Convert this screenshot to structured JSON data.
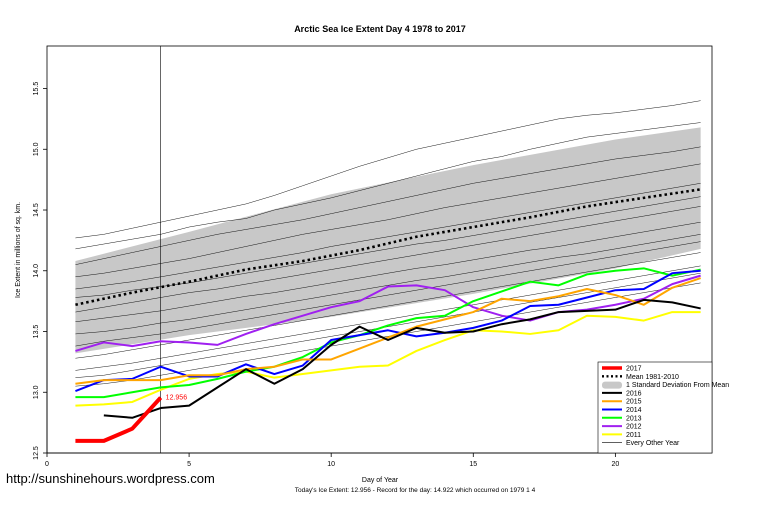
{
  "chart_data": {
    "type": "line",
    "title": "Arctic Sea Ice Extent Day 4 1978 to 2017",
    "xlabel": "Day of Year",
    "ylabel": "Ice Extent in millions of sq. km.",
    "xlim": [
      0,
      23.4
    ],
    "ylim": [
      12.5,
      15.85
    ],
    "xticks": [
      0,
      5,
      10,
      15,
      20
    ],
    "yticks": [
      12.5,
      13.0,
      13.5,
      14.0,
      14.5,
      15.0,
      15.5
    ],
    "ytick_labels": [
      "12.5",
      "13.0",
      "13.5",
      "14.0",
      "14.5",
      "15.0",
      "15.5"
    ],
    "cursor_day": 4,
    "todays_value_label": "12.956",
    "todays_value": 12.956,
    "band": {
      "name": "1 Standard Deviation From Mean",
      "x": [
        1,
        5,
        10,
        15,
        20,
        23
      ],
      "lower": [
        13.32,
        13.47,
        13.62,
        13.81,
        14.02,
        14.18
      ],
      "upper": [
        14.08,
        14.32,
        14.63,
        14.87,
        15.08,
        15.18
      ]
    },
    "mean": {
      "name": "Mean 1981-2010",
      "x": [
        1,
        3,
        5,
        7,
        9,
        11,
        13,
        15,
        17,
        19,
        21,
        23
      ],
      "values": [
        13.72,
        13.82,
        13.91,
        14.01,
        14.08,
        14.17,
        14.28,
        14.36,
        14.44,
        14.53,
        14.6,
        14.67
      ]
    },
    "series": [
      {
        "name": "2017",
        "color": "#ff0000",
        "width": 4,
        "x": [
          1,
          2,
          3,
          4
        ],
        "values": [
          12.6,
          12.6,
          12.7,
          12.956
        ]
      },
      {
        "name": "2016",
        "color": "#000000",
        "width": 2,
        "x": [
          2,
          3,
          4,
          5,
          6,
          7,
          8,
          9,
          10,
          11,
          12,
          13,
          14,
          15,
          16,
          17,
          18,
          19,
          20,
          21,
          22,
          23
        ],
        "values": [
          12.81,
          12.79,
          12.87,
          12.89,
          13.04,
          13.19,
          13.07,
          13.19,
          13.39,
          13.54,
          13.43,
          13.53,
          13.49,
          13.5,
          13.56,
          13.6,
          13.66,
          13.67,
          13.68,
          13.76,
          13.74,
          13.69
        ]
      },
      {
        "name": "2015",
        "color": "#ffa500",
        "width": 2,
        "x": [
          1,
          2,
          3,
          4,
          5,
          6,
          7,
          8,
          9,
          10,
          11,
          12,
          13,
          14,
          15,
          16,
          17,
          18,
          19,
          20,
          21,
          22,
          23
        ],
        "values": [
          13.07,
          13.1,
          13.1,
          13.1,
          13.14,
          13.14,
          13.19,
          13.21,
          13.27,
          13.27,
          13.36,
          13.45,
          13.54,
          13.6,
          13.66,
          13.77,
          13.75,
          13.79,
          13.85,
          13.8,
          13.72,
          13.86,
          13.94
        ]
      },
      {
        "name": "2014",
        "color": "#0000ff",
        "width": 2,
        "x": [
          1,
          2,
          3,
          4,
          5,
          6,
          7,
          8,
          9,
          10,
          11,
          12,
          13,
          14,
          15,
          16,
          17,
          18,
          19,
          20,
          21,
          22,
          23
        ],
        "values": [
          13.01,
          13.1,
          13.11,
          13.21,
          13.13,
          13.13,
          13.23,
          13.15,
          13.22,
          13.43,
          13.47,
          13.51,
          13.46,
          13.49,
          13.53,
          13.59,
          13.71,
          13.72,
          13.78,
          13.84,
          13.85,
          13.98,
          14.0
        ]
      },
      {
        "name": "2013",
        "color": "#00ff00",
        "width": 2,
        "x": [
          1,
          2,
          3,
          4,
          5,
          6,
          7,
          8,
          9,
          10,
          11,
          12,
          13,
          14,
          15,
          16,
          17,
          18,
          19,
          20,
          21,
          22,
          23
        ],
        "values": [
          12.96,
          12.96,
          13.0,
          13.04,
          13.06,
          13.11,
          13.17,
          13.21,
          13.29,
          13.41,
          13.47,
          13.55,
          13.61,
          13.63,
          13.75,
          13.83,
          13.91,
          13.88,
          13.97,
          14.0,
          14.02,
          13.96,
          14.01
        ]
      },
      {
        "name": "2012",
        "color": "#a020f0",
        "width": 2,
        "x": [
          1,
          2,
          3,
          4,
          5,
          6,
          7,
          8,
          9,
          10,
          11,
          12,
          13,
          14,
          15,
          16,
          17,
          18,
          19,
          20,
          21,
          22,
          23
        ],
        "values": [
          13.34,
          13.41,
          13.38,
          13.42,
          13.41,
          13.39,
          13.48,
          13.56,
          13.63,
          13.7,
          13.75,
          13.87,
          13.88,
          13.84,
          13.7,
          13.63,
          13.59,
          13.66,
          13.68,
          13.72,
          13.77,
          13.89,
          13.96
        ]
      },
      {
        "name": "2011",
        "color": "#ffff00",
        "width": 2,
        "x": [
          1,
          2,
          3,
          4,
          5,
          6,
          7,
          8,
          9,
          10,
          11,
          12,
          13,
          14,
          15,
          16,
          17,
          18,
          19,
          20,
          21,
          22,
          23
        ],
        "values": [
          12.89,
          12.9,
          12.92,
          13.02,
          13.11,
          13.15,
          13.17,
          13.12,
          13.15,
          13.18,
          13.21,
          13.22,
          13.34,
          13.43,
          13.51,
          13.5,
          13.48,
          13.51,
          13.63,
          13.62,
          13.59,
          13.66,
          13.66
        ]
      }
    ],
    "legend": [
      {
        "label": "2017",
        "kind": "line",
        "color": "#ff0000"
      },
      {
        "label": "Mean 1981-2010",
        "kind": "dotted",
        "color": "#000000"
      },
      {
        "label": "1 Standard Deviation From Mean",
        "kind": "band",
        "color": "#c8c8c8"
      },
      {
        "label": "2016",
        "kind": "line",
        "color": "#000000"
      },
      {
        "label": "2015",
        "kind": "line",
        "color": "#ffa500"
      },
      {
        "label": "2014",
        "kind": "line",
        "color": "#0000ff"
      },
      {
        "label": "2013",
        "kind": "line",
        "color": "#00ff00"
      },
      {
        "label": "2012",
        "kind": "line",
        "color": "#a020f0"
      },
      {
        "label": "2011",
        "kind": "line",
        "color": "#ffff00"
      },
      {
        "label": "Every Other Year",
        "kind": "thin",
        "color": "#000000"
      }
    ],
    "other_years": [
      [
        14.27,
        14.3,
        14.35,
        14.4,
        14.45,
        14.5,
        14.55,
        14.62,
        14.7,
        14.78,
        14.86,
        14.93,
        15.0,
        15.05,
        15.1,
        15.15,
        15.2,
        15.25,
        15.28,
        15.3,
        15.33,
        15.36,
        15.4
      ],
      [
        14.18,
        14.22,
        14.26,
        14.3,
        14.36,
        14.4,
        14.43,
        14.5,
        14.55,
        14.6,
        14.66,
        14.72,
        14.78,
        14.84,
        14.9,
        14.94,
        15.0,
        15.05,
        15.1,
        15.13,
        15.16,
        15.19,
        15.22
      ],
      [
        14.05,
        14.1,
        14.15,
        14.2,
        14.25,
        14.3,
        14.34,
        14.38,
        14.42,
        14.47,
        14.52,
        14.57,
        14.62,
        14.67,
        14.72,
        14.76,
        14.8,
        14.84,
        14.88,
        14.92,
        14.95,
        14.98,
        15.02
      ],
      [
        13.95,
        13.98,
        14.02,
        14.06,
        14.1,
        14.15,
        14.2,
        14.25,
        14.3,
        14.34,
        14.38,
        14.42,
        14.47,
        14.52,
        14.56,
        14.6,
        14.64,
        14.68,
        14.72,
        14.76,
        14.8,
        14.84,
        14.88
      ],
      [
        13.85,
        13.88,
        13.91,
        13.95,
        13.99,
        14.03,
        14.07,
        14.11,
        14.15,
        14.2,
        14.24,
        14.28,
        14.32,
        14.36,
        14.4,
        14.44,
        14.48,
        14.52,
        14.56,
        14.6,
        14.64,
        14.68,
        14.72
      ],
      [
        13.78,
        13.8,
        13.84,
        13.87,
        13.9,
        13.94,
        13.98,
        14.02,
        14.06,
        14.1,
        14.14,
        14.18,
        14.22,
        14.25,
        14.29,
        14.33,
        14.37,
        14.41,
        14.45,
        14.49,
        14.53,
        14.57,
        14.61
      ],
      [
        13.66,
        13.7,
        13.74,
        13.78,
        13.82,
        13.85,
        13.89,
        13.93,
        13.97,
        14.01,
        14.05,
        14.09,
        14.13,
        14.17,
        14.21,
        14.25,
        14.29,
        14.33,
        14.37,
        14.41,
        14.45,
        14.49,
        14.53
      ],
      [
        13.58,
        13.61,
        13.64,
        13.67,
        13.71,
        13.75,
        13.79,
        13.82,
        13.86,
        13.9,
        13.94,
        13.98,
        14.02,
        14.05,
        14.09,
        14.13,
        14.17,
        14.2,
        14.24,
        14.28,
        14.32,
        14.36,
        14.4
      ],
      [
        13.48,
        13.5,
        13.53,
        13.57,
        13.6,
        13.64,
        13.68,
        13.72,
        13.76,
        13.8,
        13.84,
        13.88,
        13.92,
        13.95,
        13.99,
        14.03,
        14.07,
        14.11,
        14.14,
        14.18,
        14.22,
        14.26,
        14.3
      ],
      [
        13.38,
        13.42,
        13.45,
        13.48,
        13.52,
        13.56,
        13.6,
        13.64,
        13.68,
        13.72,
        13.76,
        13.8,
        13.84,
        13.88,
        13.92,
        13.96,
        14.0,
        14.04,
        14.08,
        14.12,
        14.16,
        14.2,
        14.24
      ],
      [
        13.28,
        13.31,
        13.35,
        13.39,
        13.43,
        13.47,
        13.51,
        13.55,
        13.59,
        13.63,
        13.67,
        13.71,
        13.75,
        13.79,
        13.83,
        13.87,
        13.91,
        13.95,
        13.99,
        14.03,
        14.07,
        14.11,
        14.15
      ],
      [
        13.18,
        13.21,
        13.24,
        13.28,
        13.32,
        13.36,
        13.4,
        13.44,
        13.48,
        13.52,
        13.56,
        13.6,
        13.64,
        13.68,
        13.72,
        13.76,
        13.8,
        13.84,
        13.88,
        13.92,
        13.96,
        14.0,
        14.04
      ],
      [
        13.12,
        13.14,
        13.18,
        13.22,
        13.26,
        13.3,
        13.34,
        13.38,
        13.42,
        13.46,
        13.5,
        13.54,
        13.58,
        13.62,
        13.66,
        13.7,
        13.74,
        13.78,
        13.82,
        13.86,
        13.9,
        13.94,
        13.98
      ],
      [
        13.05,
        13.07,
        13.1,
        13.14,
        13.18,
        13.22,
        13.26,
        13.3,
        13.34,
        13.38,
        13.42,
        13.46,
        13.5,
        13.54,
        13.58,
        13.62,
        13.66,
        13.7,
        13.74,
        13.78,
        13.82,
        13.86,
        13.9
      ]
    ]
  },
  "watermark": "http://sunshinehours.wordpress.com",
  "footnote": "Today's Ice Extent: 12.956  - Record for the day: 14.922 which occurred on 1979 1 4"
}
